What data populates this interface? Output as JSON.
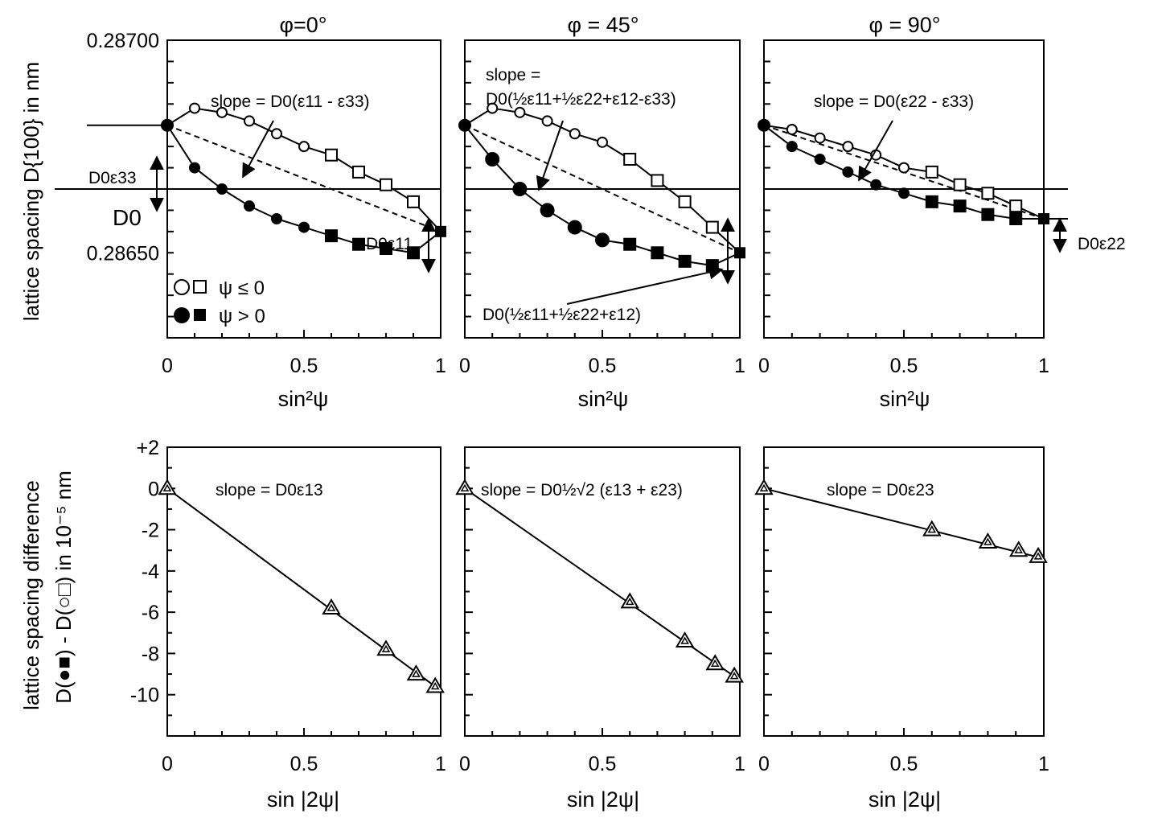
{
  "ylabel_top": "lattice spacing  D{100} in nm",
  "ylabel_bottom_1": "lattice spacing difference",
  "ylabel_bottom_2": "D(●■) - D(○□) in 10⁻⁵ nm",
  "legend": {
    "open_label": "ψ ≤ 0",
    "filled_label": "ψ > 0"
  },
  "colors": {
    "ink": "#000000",
    "background": "#ffffff"
  },
  "chart_data": [
    {
      "type": "scatter",
      "title": "φ=0°",
      "xlabel": "sin²ψ",
      "xlim": [
        0,
        1
      ],
      "ylim": [
        0.2863,
        0.287
      ],
      "yticks": [
        "0.28700",
        "0.28650"
      ],
      "ytick_values": [
        0.287,
        0.2865
      ],
      "xticks": [
        "0",
        "0.5",
        "1"
      ],
      "reference_line": {
        "label": "D0",
        "value": 0.28665
      },
      "series": [
        {
          "name": "ψ ≤ 0",
          "marker": "open",
          "x": [
            0,
            0.1,
            0.2,
            0.3,
            0.4,
            0.5,
            0.6,
            0.7,
            0.8,
            0.9,
            1.0
          ],
          "y": [
            0.2868,
            0.28684,
            0.28683,
            0.28681,
            0.28678,
            0.28675,
            0.28673,
            0.28669,
            0.28666,
            0.28662,
            0.28655
          ]
        },
        {
          "name": "ψ > 0",
          "marker": "filled",
          "x": [
            0,
            0.1,
            0.2,
            0.3,
            0.4,
            0.5,
            0.6,
            0.7,
            0.8,
            0.9,
            1.0
          ],
          "y": [
            0.2868,
            0.2867,
            0.28665,
            0.28661,
            0.28658,
            0.28656,
            0.28654,
            0.28652,
            0.28651,
            0.2865,
            0.28655
          ]
        }
      ],
      "dashed_line": {
        "x": [
          0,
          1
        ],
        "y": [
          0.2868,
          0.28655
        ]
      },
      "annotations": [
        "slope = D0(ε11 - ε33)",
        "D0ε33",
        "D0",
        "D0ε11"
      ]
    },
    {
      "type": "scatter",
      "title": "φ = 45°",
      "xlabel": "sin²ψ",
      "xlim": [
        0,
        1
      ],
      "ylim": [
        0.2863,
        0.287
      ],
      "xticks": [
        "0",
        "0.5",
        "1"
      ],
      "reference_line": {
        "value": 0.28665
      },
      "series": [
        {
          "name": "ψ ≤ 0",
          "marker": "open",
          "x": [
            0,
            0.1,
            0.2,
            0.3,
            0.4,
            0.5,
            0.6,
            0.7,
            0.8,
            0.9,
            1.0
          ],
          "y": [
            0.2868,
            0.28684,
            0.28683,
            0.28681,
            0.28678,
            0.28676,
            0.28672,
            0.28667,
            0.28662,
            0.28656,
            0.2865
          ]
        },
        {
          "name": "ψ > 0",
          "marker": "filled",
          "x": [
            0,
            0.1,
            0.2,
            0.3,
            0.4,
            0.5,
            0.6,
            0.7,
            0.8,
            0.9,
            1.0
          ],
          "y": [
            0.2868,
            0.28672,
            0.28665,
            0.2866,
            0.28656,
            0.28653,
            0.28652,
            0.2865,
            0.28648,
            0.28647,
            0.2865
          ]
        }
      ],
      "dashed_line": {
        "x": [
          0,
          1
        ],
        "y": [
          0.2868,
          0.2865
        ]
      },
      "annotations": [
        "slope =",
        "D0(½ε11+½ε22+ε12-ε33)",
        "D0(½ε11+½ε22+ε12)"
      ]
    },
    {
      "type": "scatter",
      "title": "φ = 90°",
      "xlabel": "sin²ψ",
      "xlim": [
        0,
        1
      ],
      "ylim": [
        0.2863,
        0.287
      ],
      "xticks": [
        "0",
        "0.5",
        "1"
      ],
      "reference_line": {
        "value": 0.28665
      },
      "series": [
        {
          "name": "ψ ≤ 0",
          "marker": "open",
          "x": [
            0,
            0.1,
            0.2,
            0.3,
            0.4,
            0.5,
            0.6,
            0.7,
            0.8,
            0.9,
            1.0
          ],
          "y": [
            0.2868,
            0.28679,
            0.28677,
            0.28675,
            0.28673,
            0.2867,
            0.28669,
            0.28666,
            0.28664,
            0.28661,
            0.28658
          ]
        },
        {
          "name": "ψ > 0",
          "marker": "filled",
          "x": [
            0,
            0.1,
            0.2,
            0.3,
            0.4,
            0.5,
            0.6,
            0.7,
            0.8,
            0.9,
            1.0
          ],
          "y": [
            0.2868,
            0.28675,
            0.28672,
            0.28669,
            0.28666,
            0.28664,
            0.28662,
            0.28661,
            0.28659,
            0.28658,
            0.28658
          ]
        }
      ],
      "dashed_line": {
        "x": [
          0,
          1
        ],
        "y": [
          0.2868,
          0.28658
        ]
      },
      "annotations": [
        "slope = D0(ε22 - ε33)",
        "D0ε22"
      ]
    },
    {
      "type": "line",
      "xlabel": "sin |2ψ|",
      "xlim": [
        0,
        1
      ],
      "ylim": [
        -12,
        2
      ],
      "xticks": [
        "0",
        "0.5",
        "1"
      ],
      "yticks": [
        "+2",
        "0",
        "-2",
        "-4",
        "-6",
        "-8",
        "-10"
      ],
      "ytick_values": [
        2,
        0,
        -2,
        -4,
        -6,
        -8,
        -10
      ],
      "series": [
        {
          "marker": "triangle",
          "x": [
            0,
            0.6,
            0.8,
            0.91,
            0.98
          ],
          "y": [
            0,
            -5.8,
            -7.8,
            -9.0,
            -9.6
          ]
        }
      ],
      "fit_line": {
        "x": [
          0,
          1
        ],
        "y": [
          0,
          -9.8
        ]
      },
      "annotations": [
        "slope = D0ε13"
      ]
    },
    {
      "type": "line",
      "xlabel": "sin |2ψ|",
      "xlim": [
        0,
        1
      ],
      "ylim": [
        -12,
        2
      ],
      "xticks": [
        "0",
        "0.5",
        "1"
      ],
      "series": [
        {
          "marker": "triangle",
          "x": [
            0,
            0.6,
            0.8,
            0.91,
            0.98
          ],
          "y": [
            0,
            -5.5,
            -7.4,
            -8.5,
            -9.1
          ]
        }
      ],
      "fit_line": {
        "x": [
          0,
          1
        ],
        "y": [
          0,
          -9.3
        ]
      },
      "annotations": [
        "slope = D0½√2 (ε13 + ε23)"
      ]
    },
    {
      "type": "line",
      "xlabel": "sin |2ψ|",
      "xlim": [
        0,
        1
      ],
      "ylim": [
        -12,
        2
      ],
      "xticks": [
        "0",
        "0.5",
        "1"
      ],
      "series": [
        {
          "marker": "triangle",
          "x": [
            0,
            0.6,
            0.8,
            0.91,
            0.98
          ],
          "y": [
            0,
            -2.0,
            -2.6,
            -3.0,
            -3.3
          ]
        }
      ],
      "fit_line": {
        "x": [
          0,
          1
        ],
        "y": [
          0,
          -3.4
        ]
      },
      "annotations": [
        "slope = D0ε23"
      ]
    }
  ]
}
